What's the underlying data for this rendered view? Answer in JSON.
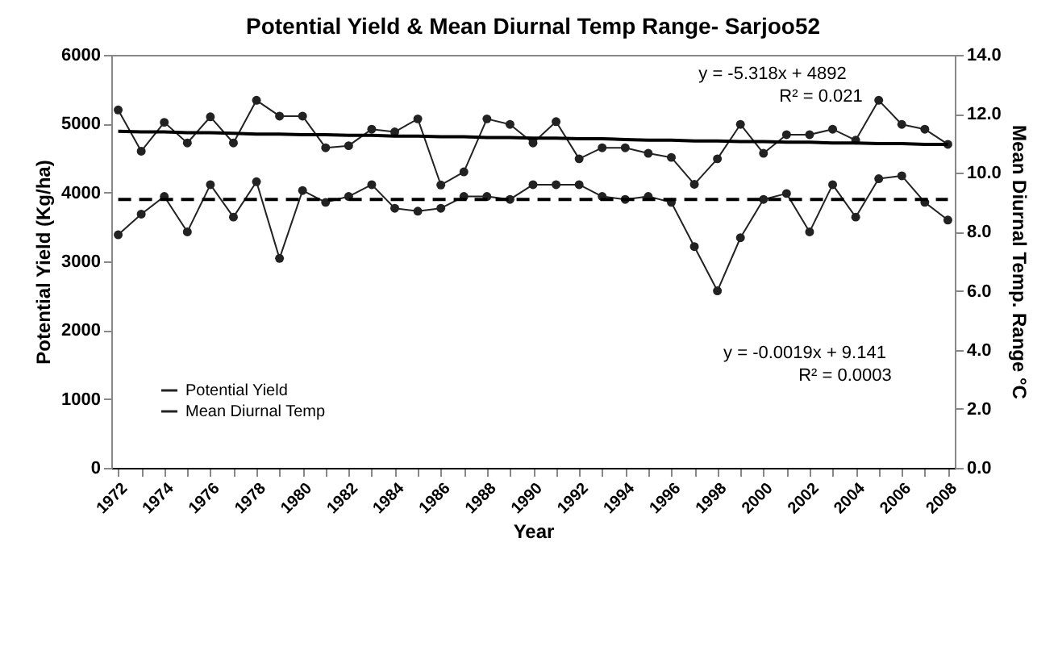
{
  "chart_data": {
    "type": "line",
    "title": "Potential Yield & Mean Diurnal Temp Range- Sarjoo52",
    "xlabel": "Year",
    "ylabel": "Potential Yield (Kg/ha)",
    "y2label": "Mean Diurnal Temp. Range °C",
    "categories": [
      "1972",
      null,
      "1974",
      null,
      "1976",
      null,
      "1978",
      null,
      "1980",
      null,
      "1982",
      null,
      "1984",
      null,
      "1986",
      null,
      "1988",
      null,
      "1990",
      null,
      "1992",
      null,
      "1994",
      null,
      "1996",
      null,
      "1998",
      null,
      "2000",
      null,
      "2002",
      null,
      "2004",
      null,
      "2006",
      null,
      "2008"
    ],
    "series": [
      {
        "name": "Potential Yield",
        "color": "#222222",
        "marker": "circle",
        "values": [
          5200,
          4600,
          5020,
          4720,
          5100,
          4720,
          5340,
          5110,
          5110,
          4650,
          4680,
          4920,
          4880,
          5070,
          4110,
          4300,
          5070,
          4990,
          4720,
          5030,
          4490,
          4650,
          4650,
          4570,
          4510,
          4120,
          4490,
          4990,
          4570,
          4840,
          4840,
          4920,
          4760,
          5340,
          4990,
          4920,
          4700
        ]
      },
      {
        "name": "Mean Diurnal Temp",
        "color": "#222222",
        "marker": "circle",
        "axis": "y2",
        "values": [
          7.9,
          8.6,
          9.2,
          8.0,
          9.6,
          8.5,
          9.7,
          7.1,
          9.4,
          9.0,
          9.2,
          9.6,
          8.8,
          8.7,
          8.8,
          9.2,
          9.2,
          9.1,
          9.6,
          9.6,
          9.6,
          9.2,
          9.1,
          9.2,
          9.0,
          7.5,
          6.0,
          7.8,
          9.1,
          9.3,
          8.0,
          9.6,
          8.5,
          9.8,
          9.9,
          9.0,
          8.4
        ]
      },
      {
        "type": "line",
        "color": "#000000",
        "line_style": "solid",
        "marker": "none",
        "values": [
          4890,
          4880,
          4880,
          4870,
          4870,
          4860,
          4850,
          4850,
          4840,
          4840,
          4830,
          4830,
          4820,
          4820,
          4810,
          4810,
          4800,
          4800,
          4790,
          4790,
          4780,
          4780,
          4770,
          4760,
          4760,
          4750,
          4750,
          4740,
          4740,
          4730,
          4730,
          4720,
          4720,
          4710,
          4710,
          4700,
          4700
        ]
      },
      {
        "type": "line",
        "color": "#000000",
        "line_style": "dashed",
        "marker": "none",
        "axis": "y2",
        "values": [
          9.1,
          9.1,
          9.1,
          9.1,
          9.1,
          9.1,
          9.1,
          9.1,
          9.1,
          9.1,
          9.1,
          9.1,
          9.1,
          9.1,
          9.1,
          9.1,
          9.1,
          9.1,
          9.1,
          9.1,
          9.1,
          9.1,
          9.1,
          9.1,
          9.1,
          9.1,
          9.1,
          9.1,
          9.1,
          9.1,
          9.1,
          9.1,
          9.1,
          9.1,
          9.1,
          9.1,
          9.1
        ]
      }
    ],
    "ylim": [
      0,
      6000
    ],
    "yticks": [
      0,
      1000,
      2000,
      3000,
      4000,
      5000,
      6000
    ],
    "y2lim": [
      0,
      14
    ],
    "y2ticks": [
      {
        "value": 0,
        "label": "0.0"
      },
      {
        "value": 2,
        "label": "2.0"
      },
      {
        "value": 4,
        "label": "4.0"
      },
      {
        "value": 6,
        "label": "6.0"
      },
      {
        "value": 8,
        "label": "8.0"
      },
      {
        "value": 10,
        "label": "10.0"
      },
      {
        "value": 12,
        "label": "12.0"
      },
      {
        "value": 14,
        "label": "14.0"
      }
    ],
    "annotations": [
      "y = -5.318x + 4892",
      "R² = 0.021",
      "y = -0.0019x + 9.141",
      "R² = 0.0003"
    ],
    "legend": "bottom left",
    "grid": false
  }
}
